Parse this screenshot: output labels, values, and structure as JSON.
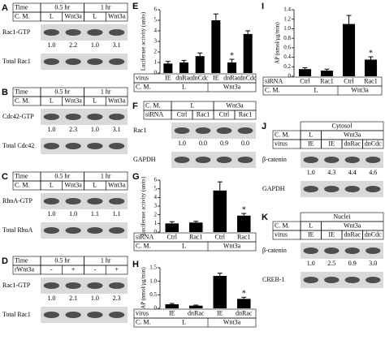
{
  "figure": {
    "blots": [
      {
        "panel": "A",
        "header": [
          [
            "Time",
            "0.5 hr",
            "1 hr"
          ],
          [
            "C. M.",
            "L",
            "Wnt3a",
            "L",
            "Wnt3a"
          ]
        ],
        "rows": [
          {
            "label": "Rac1-GTP",
            "quant": [
              "1.0",
              "2.2",
              "1.0",
              "3.1"
            ]
          },
          {
            "label": "Total Rac1"
          }
        ]
      },
      {
        "panel": "B",
        "header": [
          [
            "Time",
            "0.5 hr",
            "1 hr"
          ],
          [
            "C. M.",
            "L",
            "Wnt3a",
            "L",
            "Wnt3a"
          ]
        ],
        "rows": [
          {
            "label": "Cdc42-GTP",
            "quant": [
              "1.0",
              "2.3",
              "1.0",
              "3.1"
            ]
          },
          {
            "label": "Total Cdc42"
          }
        ]
      },
      {
        "panel": "C",
        "header": [
          [
            "Time",
            "0.5 hr",
            "1 hr"
          ],
          [
            "C. M.",
            "L",
            "Wnt3a",
            "L",
            "Wnt3a"
          ]
        ],
        "rows": [
          {
            "label": "RhoA-GTP",
            "quant": [
              "1.0",
              "1.0",
              "1.1",
              "1.1"
            ]
          },
          {
            "label": "Total RhoA"
          }
        ]
      },
      {
        "panel": "D",
        "header": [
          [
            "Time",
            "0.5 hr",
            "1 hr"
          ],
          [
            "rWnt3a",
            "-",
            "+",
            "-",
            "+"
          ]
        ],
        "rows": [
          {
            "label": "Rac1-GTP",
            "quant": [
              "1.0",
              "2.1",
              "1.0",
              "2.3"
            ]
          },
          {
            "label": "Total Rac1"
          }
        ]
      },
      {
        "panel": "F",
        "header": [
          [
            "C. M.",
            "L",
            "Wnt3a"
          ],
          [
            "siRNA",
            "Ctrl",
            "Rac1",
            "Ctrl",
            "Rac1"
          ]
        ],
        "rows": [
          {
            "label": "Rac1",
            "quant": [
              "1.0",
              "0.0",
              "0.9",
              "0.0"
            ]
          },
          {
            "label": "GAPDH"
          }
        ]
      },
      {
        "panel": "J",
        "title": "Cytosol",
        "header": [
          [
            "C. M.",
            "L",
            "Wnt3a"
          ],
          [
            "virus",
            "IE",
            "IE",
            "dnRac",
            "dnCdc"
          ]
        ],
        "rows": [
          {
            "label": "β-catenin",
            "quant": [
              "1.0",
              "4.3",
              "4.4",
              "4.6"
            ]
          },
          {
            "label": "GAPDH"
          }
        ]
      },
      {
        "panel": "K",
        "title": "Nuclei",
        "header": [
          [
            "C. M.",
            "L",
            "Wnt3a"
          ],
          [
            "virus",
            "IE",
            "IE",
            "dnRac",
            "dnCdc"
          ]
        ],
        "rows": [
          {
            "label": "β-catenin",
            "quant": [
              "1.0",
              "2.5",
              "0.9",
              "3.0"
            ]
          },
          {
            "label": "CREB-1"
          }
        ]
      }
    ]
  },
  "chart_data": [
    {
      "type": "bar",
      "panel": "E",
      "ylabel": "Luciferase activity (units)",
      "categories": [
        "IE",
        "dnRac",
        "dnCdc",
        "IE",
        "dnRac",
        "dnCdc"
      ],
      "groups": [
        "L",
        "Wnt3a"
      ],
      "row_labels": [
        "virus",
        "C. M."
      ],
      "values": [
        0.9,
        1.0,
        1.6,
        5.0,
        1.0,
        3.7
      ],
      "errors": [
        0.2,
        0.2,
        0.3,
        0.6,
        0.3,
        0.3
      ],
      "significance": [
        null,
        null,
        null,
        null,
        "*",
        null
      ],
      "color": "#000000",
      "ylim": [
        0,
        6
      ],
      "yticks": [
        0,
        1,
        2,
        3,
        4,
        5,
        6
      ]
    },
    {
      "type": "bar",
      "panel": "G",
      "ylabel": "Luciferase activity (units)",
      "categories": [
        "Ctrl",
        "Rac1",
        "Ctrl",
        "Rac1"
      ],
      "groups": [
        "L",
        "Wnt3a"
      ],
      "row_labels": [
        "siRNA",
        "C. M."
      ],
      "values": [
        1.0,
        1.1,
        4.8,
        1.9
      ],
      "errors": [
        0.2,
        0.15,
        1.0,
        0.25
      ],
      "significance": [
        null,
        null,
        null,
        "*"
      ],
      "color": "#000000",
      "ylim": [
        0,
        6
      ],
      "yticks": [
        0,
        1,
        2,
        3,
        4,
        5,
        6
      ]
    },
    {
      "type": "bar",
      "panel": "H",
      "ylabel": "AP (nmol/μg/min)",
      "categories": [
        "IE",
        "dnRac",
        "IE",
        "dnRac"
      ],
      "groups": [
        "L",
        "Wnt3a"
      ],
      "row_labels": [
        "virus",
        "C. M."
      ],
      "values": [
        0.15,
        0.1,
        1.2,
        0.35
      ],
      "errors": [
        0.03,
        0.02,
        0.1,
        0.06
      ],
      "significance": [
        null,
        null,
        null,
        "*"
      ],
      "color": "#000000",
      "ylim": [
        0,
        1.5
      ],
      "yticks": [
        0,
        0.5,
        {
          "value": 1,
          "label": "1.0"
        },
        1.5
      ]
    },
    {
      "type": "bar",
      "panel": "I",
      "ylabel": "AP (nmol/μg/min)",
      "categories": [
        "Ctrl",
        "Rac1",
        "Ctrl",
        "Rac1"
      ],
      "groups": [
        "L",
        "Wnt3a"
      ],
      "row_labels": [
        "siRNA",
        "C. M."
      ],
      "values": [
        0.15,
        0.12,
        1.1,
        0.35
      ],
      "errors": [
        0.03,
        0.03,
        0.18,
        0.06
      ],
      "significance": [
        null,
        null,
        null,
        "*"
      ],
      "color": "#000000",
      "ylim": [
        0,
        1.4
      ],
      "yticks": [
        0,
        0.2,
        0.4,
        0.6,
        0.8,
        {
          "value": 1,
          "label": "1.0"
        },
        1.2,
        1.4
      ]
    }
  ]
}
